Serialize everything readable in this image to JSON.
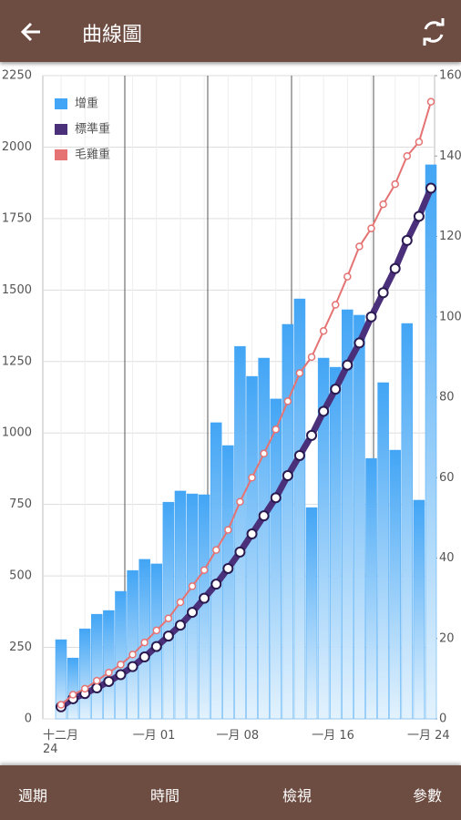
{
  "app_bar": {
    "title": "曲線圖"
  },
  "chart_data": {
    "type": "bar",
    "categories": [
      "十二月\n24",
      null,
      null,
      null,
      null,
      null,
      null,
      null,
      "一月 01",
      null,
      null,
      null,
      null,
      null,
      null,
      "一月 08",
      null,
      null,
      null,
      null,
      null,
      null,
      null,
      "一月 16",
      null,
      null,
      null,
      null,
      null,
      null,
      null,
      "一月 24"
    ],
    "series": [
      {
        "name": "增重",
        "type": "bar",
        "color": "#42a5f5",
        "values": [
          277,
          213,
          315,
          366,
          379,
          446,
          519,
          558,
          542,
          758,
          797,
          787,
          784,
          1036,
          956,
          1303,
          1198,
          1262,
          1119,
          1380,
          1469,
          739,
          1262,
          1230,
          1431,
          1412,
          911,
          1176,
          940,
          1383,
          765,
          1938
        ]
      },
      {
        "name": "標準重",
        "type": "line",
        "axis": "y2",
        "color": "#4a2f7a",
        "values": [
          3,
          5,
          6.3,
          7.7,
          9.3,
          11,
          13,
          15.4,
          18,
          20.6,
          23.3,
          26.5,
          30,
          33.5,
          37.4,
          41.5,
          46,
          50.5,
          55,
          60.5,
          65.5,
          70.5,
          76.5,
          82,
          88,
          93.5,
          100,
          106,
          112,
          119,
          125,
          132
        ]
      },
      {
        "name": "毛雞重",
        "type": "line",
        "axis": "y2",
        "color": "#e57373",
        "values": [
          3.5,
          6,
          7.5,
          9.5,
          11.5,
          13.5,
          16,
          19,
          22,
          25,
          29,
          33,
          37,
          42,
          47,
          54,
          60,
          66,
          72,
          79,
          86,
          90,
          96.5,
          103,
          110,
          117.5,
          122,
          128,
          133,
          140,
          143.5,
          153.5
        ]
      }
    ],
    "ylim": [
      0,
      2250
    ],
    "yticks": [
      0,
      250,
      500,
      750,
      1000,
      1250,
      1500,
      1750,
      2000,
      2250
    ],
    "y2lim": [
      0,
      160
    ],
    "y2ticks": [
      0,
      20,
      40,
      60,
      80,
      100,
      120,
      140,
      160
    ],
    "grid": true,
    "legend": "top-left"
  },
  "bottom_nav": [
    "週期",
    "時間",
    "檢視",
    "參數"
  ]
}
